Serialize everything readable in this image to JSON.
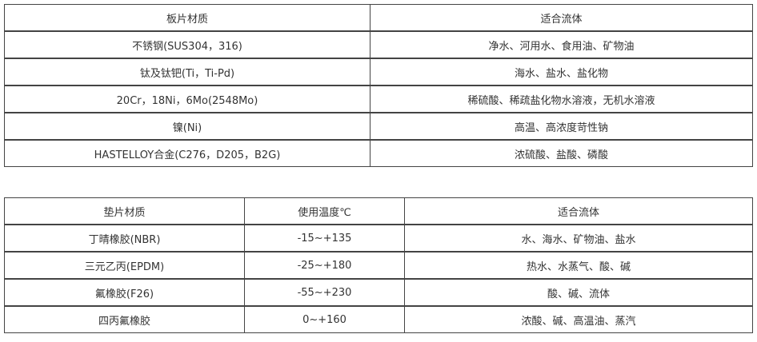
{
  "plate_table": {
    "headers": [
      "板片材质",
      "适合流体"
    ],
    "rows": [
      [
        "不锈钢(SUS304，316)",
        "净水、河用水、食用油、矿物油"
      ],
      [
        "钛及钛钯(Ti，Ti-Pd)",
        "海水、盐水、盐化物"
      ],
      [
        "20Cr，18Ni，6Mo(2548Mo)",
        "稀硫酸、稀疏盐化物水溶液，无机水溶液"
      ],
      [
        "镍(Ni)",
        "高温、高浓度苛性钠"
      ],
      [
        "HASTELLOY合金(C276，D205，B2G)",
        "浓硫酸、盐酸、磷酸"
      ]
    ]
  },
  "gasket_table": {
    "headers": [
      "垫片材质",
      "使用温度℃",
      "适合流体"
    ],
    "rows": [
      [
        "丁晴橡胶(NBR)",
        "-15~+135",
        "水、海水、矿物油、盐水"
      ],
      [
        "三元乙丙(EPDM)",
        "-25~+180",
        "热水、水蒸气、酸、碱"
      ],
      [
        "氟橡胶(F26)",
        "-55~+230",
        "酸、碱、流体"
      ],
      [
        "四丙氟橡胶",
        "0~+160",
        "浓酸、碱、高温油、蒸汽"
      ]
    ]
  }
}
